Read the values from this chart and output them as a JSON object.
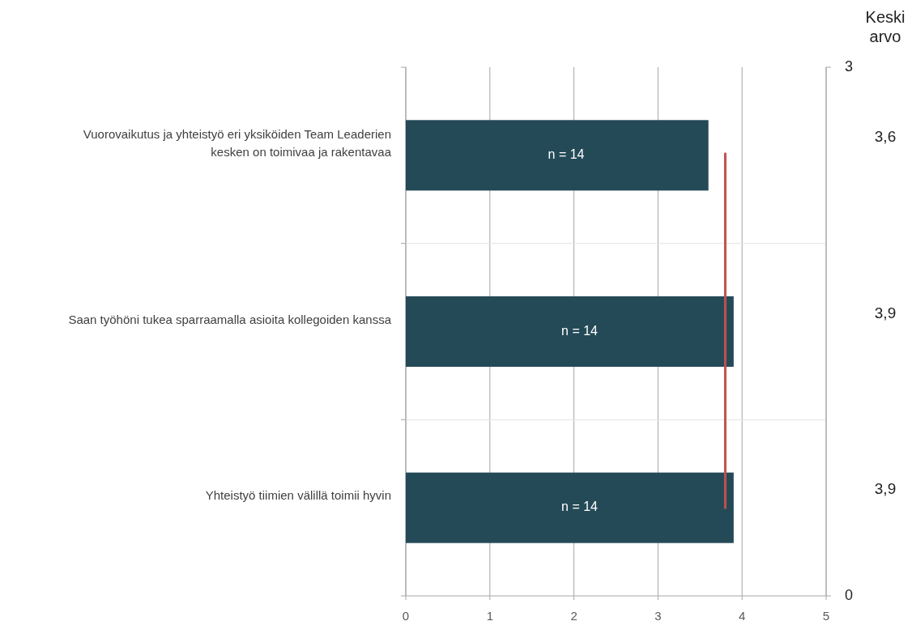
{
  "chart_data": {
    "type": "bar",
    "orientation": "horizontal",
    "categories": [
      "Vuorovaikutus ja yhteistyö eri yksiköiden Team Leaderien kesken on toimivaa ja rakentavaa",
      "Saan työhöni tukea sparraamalla asioita kollegoiden kanssa",
      "Yhteistyö tiimien välillä toimii hyvin"
    ],
    "series": [
      {
        "color": "#244a58",
        "values": [
          3.6,
          3.9,
          3.9
        ],
        "value_labels": [
          "3,6",
          "3,9",
          "3,9"
        ]
      }
    ],
    "ref_lines": [
      {
        "axis": "x",
        "value": 3.8,
        "color": "#c0504d"
      }
    ],
    "xlim": [
      0,
      5
    ],
    "xticks": [
      0,
      1,
      2,
      3,
      4,
      5
    ],
    "y2lim": [
      0,
      3
    ],
    "y2ticks": [
      0,
      {
        "value": 1,
        "label": null
      },
      {
        "value": 2,
        "label": null
      },
      3
    ],
    "y2label": "Keski arvo",
    "grid": true,
    "annotations": [
      "n = 14",
      "n = 14",
      "n = 14"
    ]
  }
}
